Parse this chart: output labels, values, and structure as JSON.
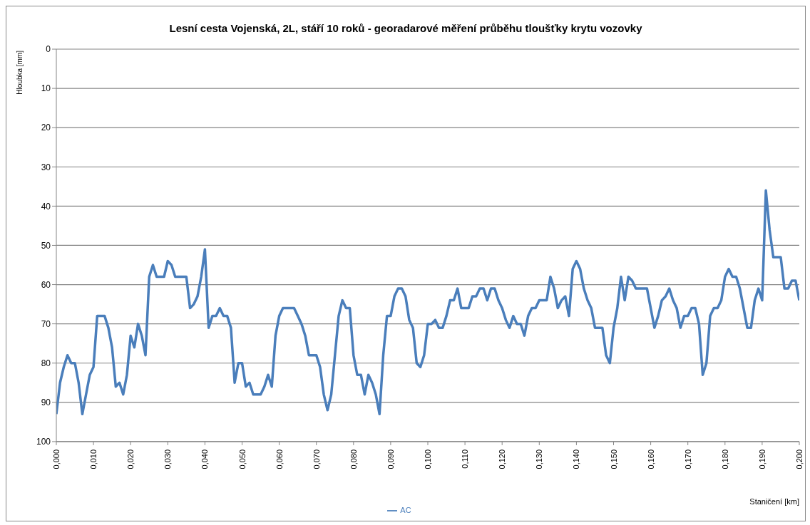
{
  "chart_data": {
    "type": "line",
    "title": "Lesní cesta Vojenská, 2L, stáří 10 roků - georadarové měření průběhu tloušťky krytu vozovky",
    "xlabel": "Staničení [km]",
    "ylabel": "Hloubka [mm]",
    "x": [
      0,
      0.001,
      0.002,
      0.003,
      0.004,
      0.005,
      0.006,
      0.007,
      0.008,
      0.009,
      0.01,
      0.011,
      0.012,
      0.013,
      0.014,
      0.015,
      0.016,
      0.017,
      0.018,
      0.019,
      0.02,
      0.021,
      0.022,
      0.023,
      0.024,
      0.025,
      0.026,
      0.027,
      0.028,
      0.029,
      0.03,
      0.031,
      0.032,
      0.033,
      0.034,
      0.035,
      0.036,
      0.037,
      0.038,
      0.039,
      0.04,
      0.041,
      0.042,
      0.043,
      0.044,
      0.045,
      0.046,
      0.047,
      0.048,
      0.049,
      0.05,
      0.051,
      0.052,
      0.053,
      0.054,
      0.055,
      0.056,
      0.057,
      0.058,
      0.059,
      0.06,
      0.061,
      0.062,
      0.063,
      0.064,
      0.065,
      0.066,
      0.067,
      0.068,
      0.069,
      0.07,
      0.071,
      0.072,
      0.073,
      0.074,
      0.075,
      0.076,
      0.077,
      0.078,
      0.079,
      0.08,
      0.081,
      0.082,
      0.083,
      0.084,
      0.085,
      0.086,
      0.087,
      0.088,
      0.089,
      0.09,
      0.091,
      0.092,
      0.093,
      0.094,
      0.095,
      0.096,
      0.097,
      0.098,
      0.099,
      0.1,
      0.101,
      0.102,
      0.103,
      0.104,
      0.105,
      0.106,
      0.107,
      0.108,
      0.109,
      0.11,
      0.111,
      0.112,
      0.113,
      0.114,
      0.115,
      0.116,
      0.117,
      0.118,
      0.119,
      0.12,
      0.121,
      0.122,
      0.123,
      0.124,
      0.125,
      0.126,
      0.127,
      0.128,
      0.129,
      0.13,
      0.131,
      0.132,
      0.133,
      0.134,
      0.135,
      0.136,
      0.137,
      0.138,
      0.139,
      0.14,
      0.141,
      0.142,
      0.143,
      0.144,
      0.145,
      0.146,
      0.147,
      0.148,
      0.149,
      0.15,
      0.151,
      0.152,
      0.153,
      0.154,
      0.155,
      0.156,
      0.157,
      0.158,
      0.159,
      0.16,
      0.161,
      0.162,
      0.163,
      0.164,
      0.165,
      0.166,
      0.167,
      0.168,
      0.169,
      0.17,
      0.171,
      0.172,
      0.173,
      0.174,
      0.175,
      0.176,
      0.177,
      0.178,
      0.179,
      0.18,
      0.181,
      0.182,
      0.183,
      0.184,
      0.185,
      0.186,
      0.187,
      0.188,
      0.189,
      0.19,
      0.191,
      0.192,
      0.193,
      0.194,
      0.195,
      0.196,
      0.197,
      0.198,
      0.199,
      0.2
    ],
    "series": [
      {
        "name": "AC",
        "color": "#4a7ebb",
        "values": [
          93,
          85,
          81,
          78,
          80,
          80,
          85,
          93,
          88,
          83,
          81,
          68,
          68,
          68,
          71,
          76,
          86,
          85,
          88,
          83,
          73,
          76,
          70,
          73,
          78,
          58,
          55,
          58,
          58,
          58,
          54,
          55,
          58,
          58,
          58,
          58,
          66,
          65,
          63,
          58,
          51,
          71,
          68,
          68,
          66,
          68,
          68,
          71,
          85,
          80,
          80,
          86,
          85,
          88,
          88,
          88,
          86,
          83,
          86,
          73,
          68,
          66,
          66,
          66,
          66,
          68,
          70,
          73,
          78,
          78,
          78,
          81,
          88,
          92,
          88,
          78,
          68,
          64,
          66,
          66,
          78,
          83,
          83,
          88,
          83,
          85,
          88,
          93,
          78,
          68,
          68,
          63,
          61,
          61,
          63,
          69,
          71,
          80,
          81,
          78,
          70,
          70,
          69,
          71,
          71,
          68,
          64,
          64,
          61,
          66,
          66,
          66,
          63,
          63,
          61,
          61,
          64,
          61,
          61,
          64,
          66,
          69,
          71,
          68,
          70,
          70,
          73,
          68,
          66,
          66,
          64,
          64,
          64,
          58,
          61,
          66,
          64,
          63,
          68,
          56,
          54,
          56,
          61,
          64,
          66,
          71,
          71,
          71,
          78,
          80,
          71,
          66,
          58,
          64,
          58,
          59,
          61,
          61,
          61,
          61,
          66,
          71,
          68,
          64,
          63,
          61,
          64,
          66,
          71,
          68,
          68,
          66,
          66,
          70,
          83,
          80,
          68,
          66,
          66,
          64,
          58,
          56,
          58,
          58,
          61,
          66,
          71,
          71,
          64,
          61,
          64,
          36,
          46,
          53,
          53,
          53,
          61,
          61,
          59,
          59,
          64
        ]
      }
    ],
    "xlim": [
      0,
      0.2
    ],
    "xticks": [
      {
        "value": 0,
        "label": "0,000"
      },
      {
        "value": 0.01,
        "label": "0,010"
      },
      {
        "value": 0.02,
        "label": "0,020"
      },
      {
        "value": 0.03,
        "label": "0,030"
      },
      {
        "value": 0.04,
        "label": "0,040"
      },
      {
        "value": 0.05,
        "label": "0,050"
      },
      {
        "value": 0.06,
        "label": "0,060"
      },
      {
        "value": 0.07,
        "label": "0,070"
      },
      {
        "value": 0.08,
        "label": "0,080"
      },
      {
        "value": 0.09,
        "label": "0,090"
      },
      {
        "value": 0.1,
        "label": "0,100"
      },
      {
        "value": 0.11,
        "label": "0,110"
      },
      {
        "value": 0.12,
        "label": "0,120"
      },
      {
        "value": 0.13,
        "label": "0,130"
      },
      {
        "value": 0.14,
        "label": "0,140"
      },
      {
        "value": 0.15,
        "label": "0,150"
      },
      {
        "value": 0.16,
        "label": "0,160"
      },
      {
        "value": 0.17,
        "label": "0,170"
      },
      {
        "value": 0.18,
        "label": "0,180"
      },
      {
        "value": 0.19,
        "label": "0,190"
      },
      {
        "value": 0.2,
        "label": "0,200"
      }
    ],
    "ylim": [
      100,
      0
    ],
    "yticks": [
      0,
      10,
      20,
      30,
      40,
      50,
      60,
      70,
      80,
      90,
      100
    ],
    "grid": "y",
    "legend": "bottom",
    "marker": "none",
    "line_style": "solid"
  }
}
